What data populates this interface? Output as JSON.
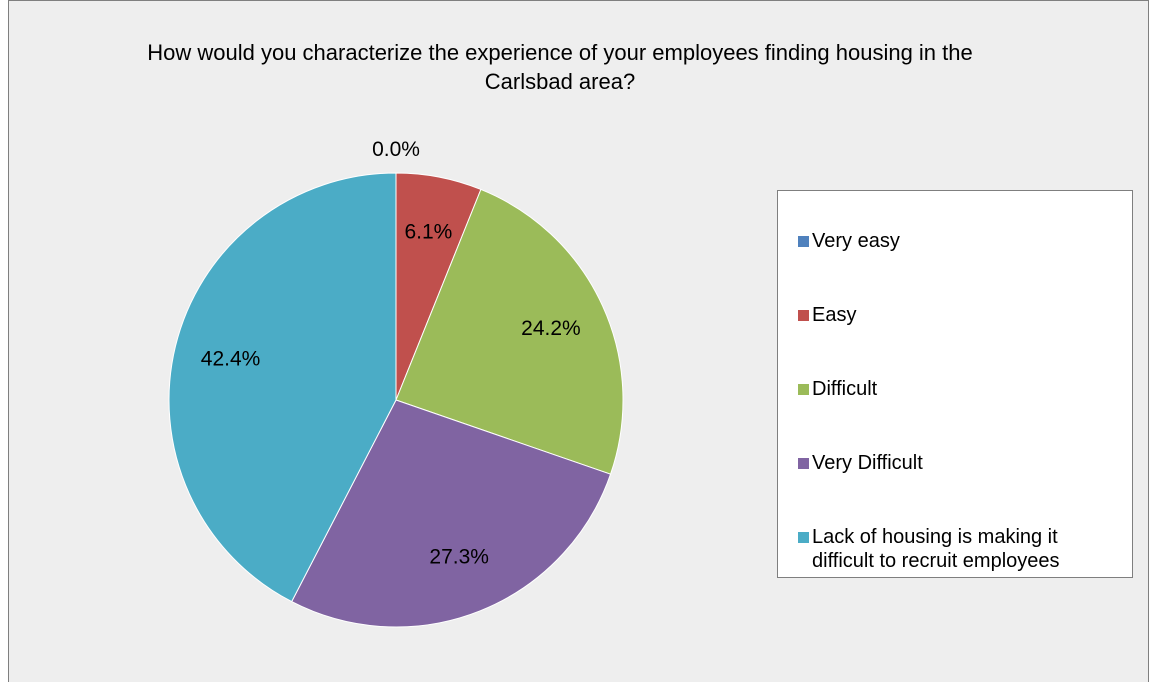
{
  "chart_data": {
    "type": "pie",
    "title": "How would you characterize the experience of your employees finding housing in the Carlsbad area?",
    "categories": [
      "Very easy",
      "Easy",
      "Difficult",
      "Very Difficult",
      "Lack of housing is making it difficult to recruit employees"
    ],
    "values": [
      0.0,
      6.1,
      24.2,
      27.3,
      42.4
    ],
    "value_labels": [
      "0.0%",
      "6.1%",
      "24.2%",
      "27.3%",
      "42.4%"
    ],
    "colors": [
      "#4f81bd",
      "#c0504d",
      "#9bbb59",
      "#8064a2",
      "#4bacc6"
    ],
    "legend": "right"
  }
}
